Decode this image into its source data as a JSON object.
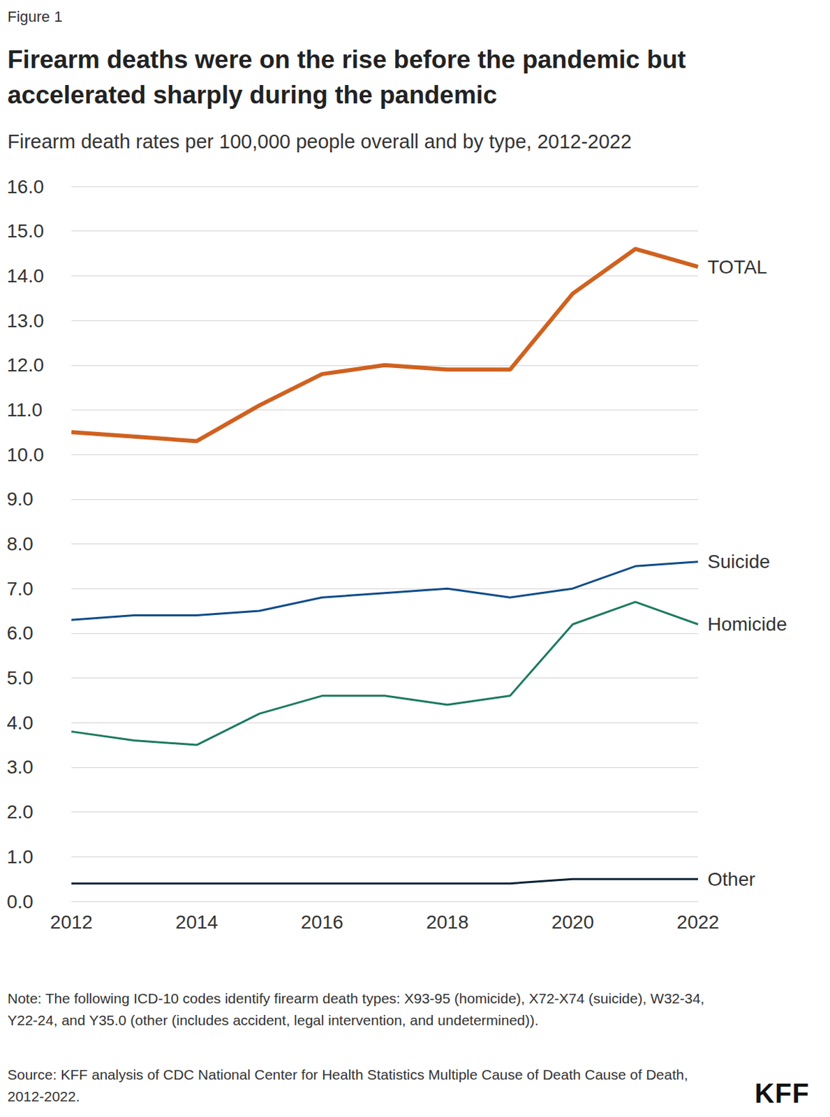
{
  "chart_data": {
    "type": "line",
    "figure_label": "Figure 1",
    "title": "Firearm deaths were on the rise before the pandemic but accelerated sharply during the pandemic",
    "subtitle": "Firearm death rates per 100,000 people overall and by type, 2012-2022",
    "note": "Note: The following ICD-10 codes identify firearm death types: X93-95 (homicide), X72-X74 (suicide), W32-34, Y22-24, and Y35.0 (other (includes accident, legal intervention, and undetermined)).",
    "source": "Source: KFF analysis of CDC National Center for Health Statistics Multiple Cause of Death Cause of Death, 2012-2022.",
    "logo": "KFF",
    "x": [
      2012,
      2013,
      2014,
      2015,
      2016,
      2017,
      2018,
      2019,
      2020,
      2021,
      2022
    ],
    "xlim": [
      2012,
      2022
    ],
    "xticks": [
      2012,
      2014,
      2016,
      2018,
      2020,
      2022
    ],
    "ylim": [
      0,
      16
    ],
    "yticks": [
      {
        "value": 0,
        "label": "0.0"
      },
      {
        "value": 1,
        "label": "1.0"
      },
      {
        "value": 2,
        "label": "2.0"
      },
      {
        "value": 3,
        "label": "3.0"
      },
      {
        "value": 4,
        "label": "4.0"
      },
      {
        "value": 5,
        "label": "5.0"
      },
      {
        "value": 6,
        "label": "6.0"
      },
      {
        "value": 7,
        "label": "7.0"
      },
      {
        "value": 8,
        "label": "8.0"
      },
      {
        "value": 9,
        "label": "9.0"
      },
      {
        "value": 10,
        "label": "10.0"
      },
      {
        "value": 11,
        "label": "11.0"
      },
      {
        "value": 12,
        "label": "12.0"
      },
      {
        "value": 13,
        "label": "13.0"
      },
      {
        "value": 14,
        "label": "14.0"
      },
      {
        "value": 15,
        "label": "15.0"
      },
      {
        "value": 16,
        "label": "16.0"
      }
    ],
    "grid": true,
    "series": [
      {
        "name": "TOTAL",
        "color": "#d0611f",
        "values": [
          10.5,
          10.4,
          10.3,
          11.1,
          11.8,
          12.0,
          11.9,
          11.9,
          13.6,
          14.6,
          14.2
        ]
      },
      {
        "name": "Suicide",
        "color": "#0f4c8a",
        "values": [
          6.3,
          6.4,
          6.4,
          6.5,
          6.8,
          6.9,
          7.0,
          6.8,
          7.0,
          7.5,
          7.6
        ]
      },
      {
        "name": "Homicide",
        "color": "#1b7a60",
        "values": [
          3.8,
          3.6,
          3.5,
          4.2,
          4.6,
          4.6,
          4.4,
          4.6,
          6.2,
          6.7,
          6.2
        ]
      },
      {
        "name": "Other",
        "color": "#0c2236",
        "values": [
          0.4,
          0.4,
          0.4,
          0.4,
          0.4,
          0.4,
          0.4,
          0.4,
          0.5,
          0.5,
          0.5
        ]
      }
    ]
  }
}
